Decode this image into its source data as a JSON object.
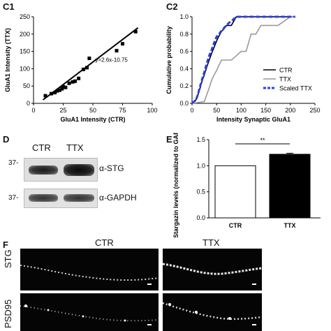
{
  "panels": {
    "c1": "C1",
    "c2": "C2",
    "d": "D",
    "e": "E",
    "f": "F"
  },
  "chart_data": [
    {
      "id": "C1",
      "type": "scatter",
      "xlabel": "GluA1 Intensity (CTR)",
      "ylabel": "GluA1 Intensity (TTX)",
      "xlim": [
        0,
        100
      ],
      "ylim": [
        0,
        250
      ],
      "xticks": [
        0,
        25,
        50,
        75,
        100
      ],
      "yticks": [
        0,
        50,
        100,
        150,
        200,
        250
      ],
      "annotation": "y=2.6x-10.75",
      "points": [
        {
          "x": 10,
          "y": 22
        },
        {
          "x": 15,
          "y": 28
        },
        {
          "x": 18,
          "y": 31
        },
        {
          "x": 20,
          "y": 36
        },
        {
          "x": 22,
          "y": 38
        },
        {
          "x": 24,
          "y": 42
        },
        {
          "x": 25,
          "y": 48
        },
        {
          "x": 27,
          "y": 46
        },
        {
          "x": 30,
          "y": 58
        },
        {
          "x": 33,
          "y": 62
        },
        {
          "x": 35,
          "y": 64
        },
        {
          "x": 38,
          "y": 72
        },
        {
          "x": 42,
          "y": 98
        },
        {
          "x": 45,
          "y": 103
        },
        {
          "x": 47,
          "y": 130
        },
        {
          "x": 70,
          "y": 152
        },
        {
          "x": 75,
          "y": 172
        },
        {
          "x": 86,
          "y": 207
        }
      ],
      "fit": {
        "slope": 2.6,
        "intercept": -10.75,
        "x_range": [
          8,
          88
        ]
      }
    },
    {
      "id": "C2",
      "type": "line",
      "xlabel": "Intensity Synaptic GluA1",
      "ylabel": "Cumulative probability",
      "xlim": [
        0,
        250
      ],
      "ylim": [
        0,
        1.0
      ],
      "xticks": [
        0,
        50,
        100,
        150,
        200,
        250
      ],
      "yticks": [
        0,
        0.2,
        0.4,
        0.6,
        0.8,
        1.0
      ],
      "yticklabels": [
        "0.0",
        "0.2",
        "0.4",
        "0.6",
        "0.8",
        "1.0"
      ],
      "legend": "inside-bottom-right",
      "series": [
        {
          "name": "CTR",
          "color": "#000000",
          "style": "solid",
          "x": [
            0,
            8,
            12,
            15,
            20,
            25,
            30,
            35,
            40,
            45,
            50,
            55,
            60,
            65,
            70,
            75,
            80,
            85,
            90,
            210
          ],
          "y": [
            0,
            0.04,
            0.1,
            0.15,
            0.25,
            0.33,
            0.42,
            0.5,
            0.58,
            0.65,
            0.72,
            0.78,
            0.83,
            0.86,
            0.9,
            0.9,
            0.9,
            0.95,
            1.0,
            1.0
          ]
        },
        {
          "name": "TTX",
          "color": "#999999",
          "style": "solid",
          "x": [
            0,
            25,
            30,
            35,
            40,
            45,
            50,
            60,
            70,
            80,
            90,
            100,
            110,
            120,
            130,
            140,
            150,
            175,
            200,
            210
          ],
          "y": [
            0,
            0.02,
            0.1,
            0.18,
            0.27,
            0.33,
            0.38,
            0.5,
            0.5,
            0.5,
            0.55,
            0.6,
            0.6,
            0.8,
            0.8,
            0.9,
            0.9,
            0.9,
            1.0,
            1.0
          ]
        },
        {
          "name": "Scaled TTX",
          "color": "#2b3ee6",
          "style": "dashed",
          "x": [
            0,
            8,
            12,
            15,
            20,
            25,
            30,
            35,
            40,
            45,
            50,
            55,
            60,
            65,
            70,
            75,
            80,
            90,
            210
          ],
          "y": [
            0,
            0.04,
            0.1,
            0.17,
            0.27,
            0.36,
            0.46,
            0.55,
            0.62,
            0.7,
            0.77,
            0.8,
            0.84,
            0.87,
            0.9,
            0.93,
            0.95,
            1.0,
            1.0
          ]
        }
      ]
    },
    {
      "id": "E",
      "type": "bar",
      "categories": [
        "CTR",
        "TTX"
      ],
      "values": [
        1.0,
        1.22
      ],
      "errors": [
        0,
        0.02
      ],
      "fills": [
        "#ffffff",
        "#000000"
      ],
      "ylabel": "Stargazin levels (normalized to GAPDH)",
      "ylim": [
        0,
        1.5
      ],
      "yticks": [
        0.0,
        0.5,
        1.0,
        1.5
      ],
      "yticklabels": [
        "0.0",
        "0.5",
        "1.0",
        "1.5"
      ],
      "significance": "**"
    }
  ],
  "blot": {
    "columns": [
      "CTR",
      "TTX"
    ],
    "rows": [
      {
        "marker": "37-",
        "label": "α-STG"
      },
      {
        "marker": "37-",
        "label": "α-GAPDH"
      }
    ]
  },
  "micrographs": {
    "columns": [
      "CTR",
      "TTX"
    ],
    "rows": [
      "STG",
      "PSD95"
    ]
  }
}
